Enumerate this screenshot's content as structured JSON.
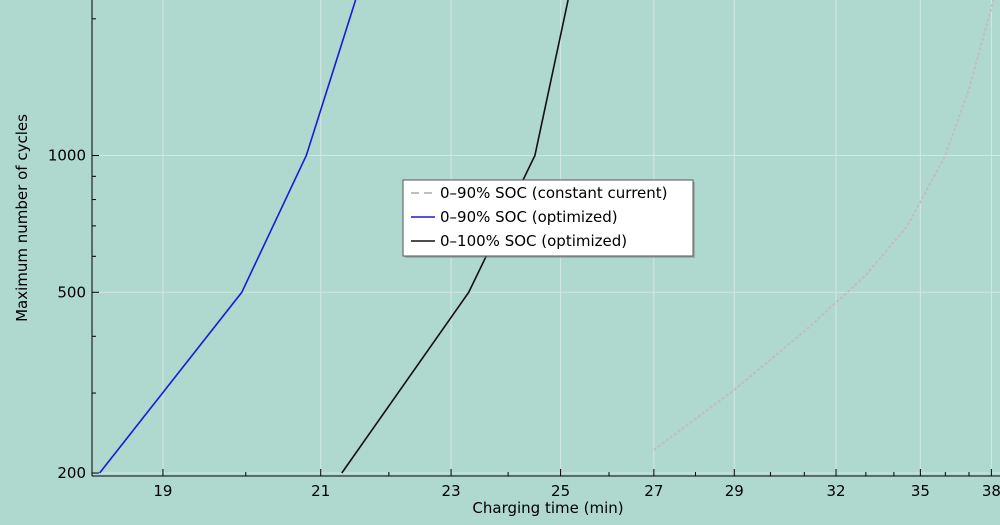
{
  "chart_data": {
    "type": "line",
    "xlabel": "Charging time (min)",
    "ylabel": "Maximum number of cycles",
    "xscale": "reciprocal",
    "yscale": "log",
    "xlim": [
      18.22,
      38.4
    ],
    "ylim": [
      197,
      2200
    ],
    "x_ticks": [
      19,
      21,
      23,
      25,
      27,
      29,
      32,
      35,
      38
    ],
    "y_ticks": [
      200,
      500,
      1000
    ],
    "grid": true,
    "legend_position": "center",
    "series": [
      {
        "name": "0–90% SOC (constant current)",
        "color": "#bfbfbf",
        "style": "dashed",
        "points": [
          [
            27.0,
            225
          ],
          [
            29,
            305
          ],
          [
            31,
            410
          ],
          [
            33,
            545
          ],
          [
            34.5,
            700
          ],
          [
            36,
            1000
          ],
          [
            37,
            1400
          ],
          [
            38.1,
            2200
          ]
        ]
      },
      {
        "name": "0–90% SOC (optimized)",
        "color": "#1a1adc",
        "style": "solid",
        "points": [
          [
            18.3,
            200
          ],
          [
            19.95,
            500
          ],
          [
            20.8,
            1000
          ],
          [
            21.5,
            2200
          ]
        ]
      },
      {
        "name": "0–100% SOC (optimized)",
        "color": "#111111",
        "style": "solid",
        "points": [
          [
            21.3,
            200
          ],
          [
            23.3,
            500
          ],
          [
            24.5,
            1000
          ],
          [
            25.15,
            2200
          ]
        ]
      }
    ]
  }
}
